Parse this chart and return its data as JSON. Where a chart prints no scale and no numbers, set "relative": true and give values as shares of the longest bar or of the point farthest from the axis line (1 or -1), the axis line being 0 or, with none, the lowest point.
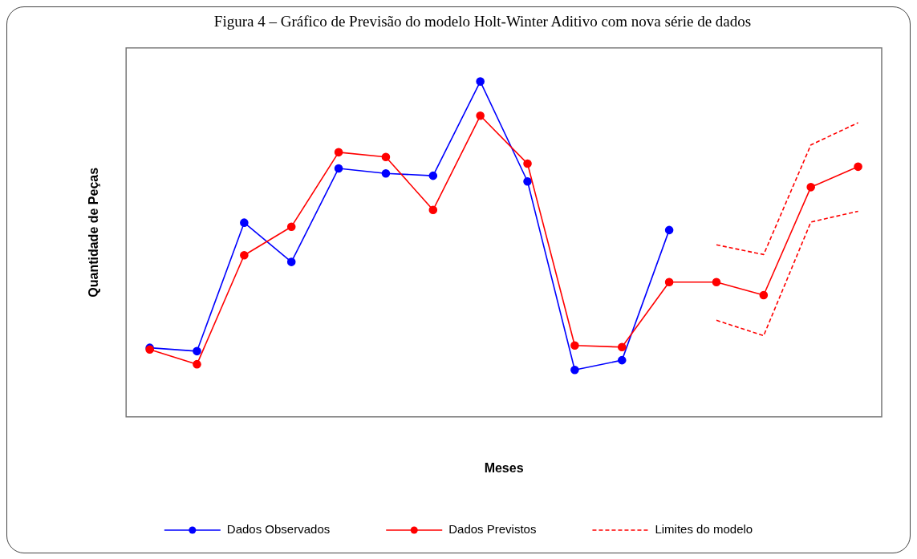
{
  "chart_data": {
    "type": "line",
    "title": "Figura 4 – Gráfico de Previsão do modelo Holt-Winter Aditivo com nova série de dados",
    "xlabel": "Meses",
    "ylabel": "Quantidade de Peças",
    "relative": true,
    "legend": "bottom",
    "grid": false,
    "categories": [
      null,
      null,
      null,
      null,
      null,
      null,
      null,
      null,
      null,
      null,
      null,
      null,
      null,
      null,
      null,
      null
    ],
    "series": [
      {
        "name": "Dados Observados",
        "color": "#0000ff",
        "marker": "circle",
        "values": [
          0.206,
          0.196,
          0.579,
          0.462,
          0.741,
          0.726,
          0.719,
          1,
          0.702,
          0.14,
          0.169,
          0.557,
          null,
          null,
          null,
          null
        ]
      },
      {
        "name": "Dados Previstos",
        "color": "#ff0000",
        "marker": "circle",
        "values": [
          0.201,
          0.157,
          0.482,
          0.567,
          0.789,
          0.775,
          0.617,
          0.898,
          0.755,
          0.213,
          0.208,
          0.402,
          0.402,
          0.363,
          0.685,
          0.746
        ]
      },
      {
        "name": "Limites do modelo",
        "color": "#ff0000",
        "marker": "none",
        "line_style": "dashed",
        "values": [
          null,
          null,
          null,
          null,
          null,
          null,
          null,
          null,
          null,
          null,
          null,
          null,
          0.513,
          0.484,
          0.811,
          0.877
        ]
      },
      {
        "color": "#ff0000",
        "marker": "none",
        "line_style": "dashed",
        "values": [
          null,
          null,
          null,
          null,
          null,
          null,
          null,
          null,
          null,
          null,
          null,
          null,
          0.288,
          0.242,
          0.581,
          0.613
        ]
      }
    ]
  }
}
